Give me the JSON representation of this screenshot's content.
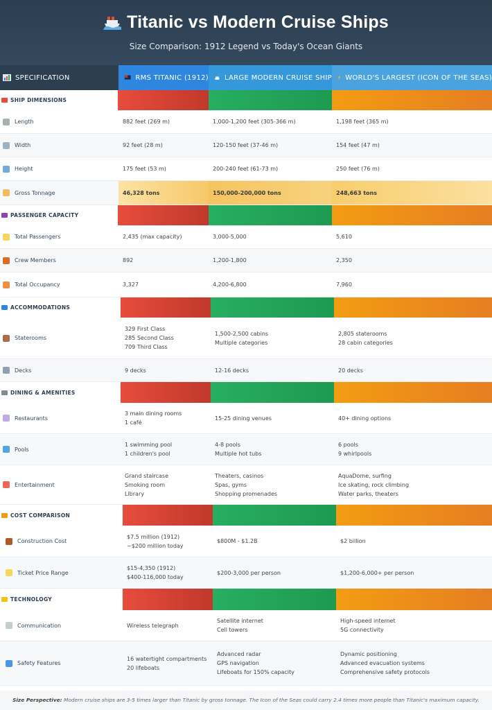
{
  "header": {
    "title": "Titanic vs Modern Cruise Ships",
    "subtitle": "Size Comparison: 1912 Legend vs Today's Ocean Giants"
  },
  "columns": [
    {
      "label": "SPECIFICATION",
      "icon": "chart-icon"
    },
    {
      "label": "RMS TITANIC (1912)",
      "icon": "flag-icon"
    },
    {
      "label": "LARGE MODERN CRUISE SHIP",
      "icon": "ship-icon"
    },
    {
      "label": "WORLD'S LARGEST (ICON OF THE SEAS)",
      "icon": "trophy-icon"
    }
  ],
  "colors": {
    "titanic": "#e74c3c",
    "modern": "#27ae60",
    "largest": "#f39c12",
    "header": "#2c3e50"
  },
  "sections": [
    {
      "label": "SHIP DIMENSIONS",
      "icon": "ship-icon",
      "rows": [
        {
          "label": "Length",
          "icon": "ruler-icon",
          "values": [
            [
              "882 feet (269 m)"
            ],
            [
              "1,000-1,200 feet (305-366 m)"
            ],
            [
              "1,198 feet (365 m)"
            ]
          ]
        },
        {
          "label": "Width",
          "icon": "triangle-ruler-icon",
          "values": [
            [
              "92 feet (28 m)"
            ],
            [
              "120-150 feet (37-46 m)"
            ],
            [
              "154 feet (47 m)"
            ]
          ]
        },
        {
          "label": "Height",
          "icon": "bar-chart-icon",
          "values": [
            [
              "175 feet (53 m)"
            ],
            [
              "200-240 feet (61-73 m)"
            ],
            [
              "250 feet (76 m)"
            ]
          ]
        },
        {
          "label": "Gross Tonnage",
          "icon": "scale-icon",
          "values": [
            [
              "46,328 tons"
            ],
            [
              "150,000-200,000 tons"
            ],
            [
              "248,663 tons"
            ]
          ]
        }
      ]
    },
    {
      "label": "PASSENGER CAPACITY",
      "icon": "people-icon",
      "rows": [
        {
          "label": "Total Passengers",
          "icon": "ticket-icon",
          "values": [
            [
              "2,435 (max capacity)"
            ],
            [
              "3,000-5,000"
            ],
            [
              "5,610"
            ]
          ]
        },
        {
          "label": "Crew Members",
          "icon": "crew-icon",
          "values": [
            [
              "892"
            ],
            [
              "1,200-1,800"
            ],
            [
              "2,350"
            ]
          ]
        },
        {
          "label": "Total Occupancy",
          "icon": "house-icon",
          "values": [
            [
              "3,327"
            ],
            [
              "4,200-6,800"
            ],
            [
              "7,960"
            ]
          ]
        }
      ]
    },
    {
      "label": "ACCOMMODATIONS",
      "icon": "bed-icon",
      "rows": [
        {
          "label": "Staterooms",
          "icon": "door-icon",
          "values": [
            [
              "329 First Class",
              "285 Second Class",
              "709 Third Class"
            ],
            [
              "1,500-2,500 cabins",
              "Multiple categories"
            ],
            [
              "2,805 staterooms",
              "28 cabin categories"
            ]
          ]
        },
        {
          "label": "Decks",
          "icon": "building-icon",
          "values": [
            [
              "9 decks"
            ],
            [
              "12-16 decks"
            ],
            [
              "20 decks"
            ]
          ]
        }
      ]
    },
    {
      "label": "DINING & AMENITIES",
      "icon": "cutlery-icon",
      "rows": [
        {
          "label": "Restaurants",
          "icon": "plate-icon",
          "values": [
            [
              "3 main dining rooms",
              "1 café"
            ],
            [
              "15-25 dining venues"
            ],
            [
              "40+ dining options"
            ]
          ]
        },
        {
          "label": "Pools",
          "icon": "pool-icon",
          "values": [
            [
              "1 swimming pool",
              "1 children's pool"
            ],
            [
              "4-8 pools",
              "Multiple hot tubs"
            ],
            [
              "6 pools",
              "9 whirlpools"
            ]
          ]
        },
        {
          "label": "Entertainment",
          "icon": "masks-icon",
          "values": [
            [
              "Grand staircase",
              "Smoking room",
              "Library"
            ],
            [
              "Theaters, casinos",
              "Spas, gyms",
              "Shopping promenades"
            ],
            [
              "AquaDome, surfing",
              "Ice skating, rock climbing",
              "Water parks, theaters"
            ]
          ]
        }
      ]
    },
    {
      "label": "COST COMPARISON",
      "icon": "money-icon",
      "rows": [
        {
          "label": "Construction Cost",
          "icon": "hammer-icon",
          "values": [
            [
              "$7.5 million (1912)",
              "~$200 million today"
            ],
            [
              "$800M - $1.2B"
            ],
            [
              "$2 billion"
            ]
          ]
        },
        {
          "label": "Ticket Price Range",
          "icon": "ticket-icon",
          "values": [
            [
              "$15-4,350 (1912)",
              "$400-116,000 today"
            ],
            [
              "$200-3,000 per person"
            ],
            [
              "$1,200-6,000+ per person"
            ]
          ]
        }
      ]
    },
    {
      "label": "TECHNOLOGY",
      "icon": "bolt-icon",
      "rows": [
        {
          "label": "Communication",
          "icon": "antenna-icon",
          "values": [
            [
              "Wireless telegraph"
            ],
            [
              "Satellite internet",
              "Cell towers"
            ],
            [
              "High-speed internet",
              "5G connectivity"
            ]
          ]
        },
        {
          "label": "Safety Features",
          "icon": "shield-icon",
          "values": [
            [
              "16 watertight compartments",
              "20 lifeboats"
            ],
            [
              "Advanced radar",
              "GPS navigation",
              "Lifeboats for 150% capacity"
            ],
            [
              "Dynamic positioning",
              "Advanced evacuation systems",
              "Comprehensive safety protocols"
            ]
          ]
        }
      ]
    }
  ],
  "footer": {
    "lead": "Size Perspective:",
    "text": "Modern cruise ships are 3-5 times larger than Titanic by gross tonnage. The Icon of the Seas could carry 2.4 times more people than Titanic's maximum capacity."
  }
}
